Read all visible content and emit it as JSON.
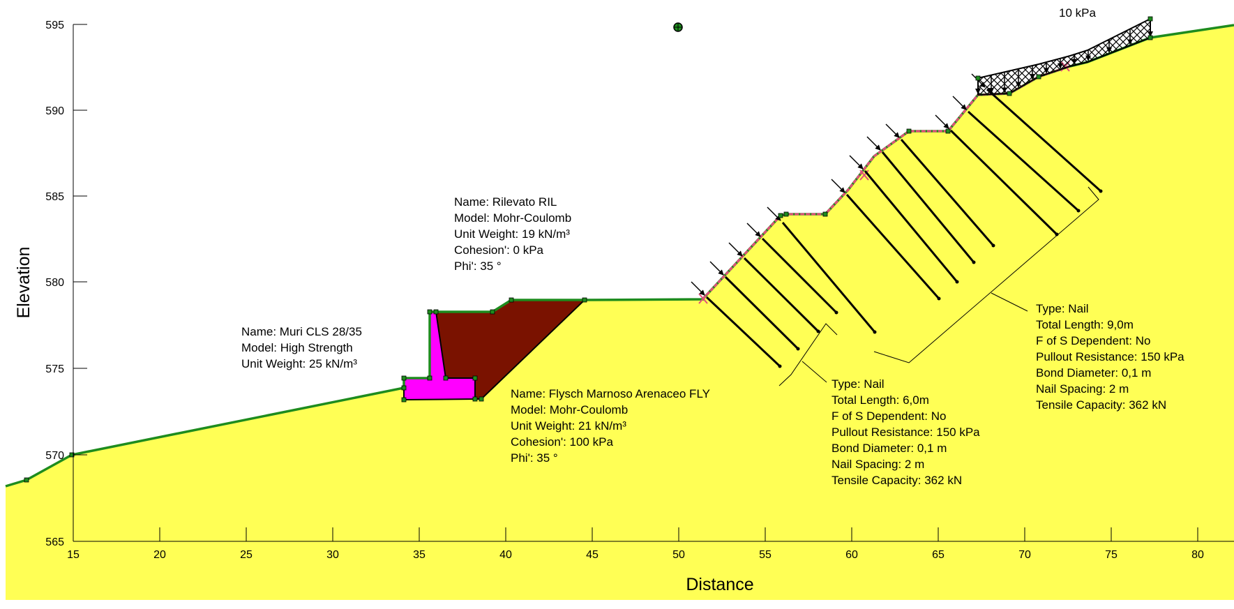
{
  "axes": {
    "x_title": "Distance",
    "y_title": "Elevation",
    "x_ticks": [
      "15",
      "20",
      "25",
      "30",
      "35",
      "40",
      "45",
      "50",
      "55",
      "60",
      "65",
      "70",
      "75",
      "80"
    ],
    "y_ticks": [
      "565",
      "570",
      "575",
      "580",
      "585",
      "590",
      "595"
    ]
  },
  "load_label": "10 kPa",
  "materials": {
    "rilevato": [
      "Name: Rilevato RIL",
      "Model: Mohr-Coulomb",
      "Unit Weight: 19 kN/m³",
      "Cohesion': 0 kPa",
      "Phi': 35 °"
    ],
    "muri": [
      "Name: Muri CLS 28/35",
      "Model: High Strength",
      "Unit Weight: 25 kN/m³"
    ],
    "flysch": [
      "Name: Flysch Marnoso Arenaceo FLY",
      "Model: Mohr-Coulomb",
      "Unit Weight: 21 kN/m³",
      "Cohesion': 100 kPa",
      "Phi': 35 °"
    ]
  },
  "nails": {
    "short": [
      "Type: Nail",
      "Total Length: 6,0m",
      "F of S Dependent: No",
      "Pullout Resistance: 150 kPa",
      "Bond Diameter: 0,1 m",
      "Nail Spacing: 2 m",
      "Tensile Capacity: 362 kN"
    ],
    "long": [
      "Type: Nail",
      "Total Length: 9,0m",
      "F of S Dependent: No",
      "Pullout Resistance: 150 kPa",
      "Bond Diameter: 0,1 m",
      "Nail Spacing: 2 m",
      "Tensile Capacity: 362 kN"
    ]
  },
  "colors": {
    "ground": "#ffff55",
    "surface_line": "#1e8c1e",
    "fill_embankment": "#7a1200",
    "wall": "#ff00ff",
    "slip_surface": "#e0507a"
  }
}
